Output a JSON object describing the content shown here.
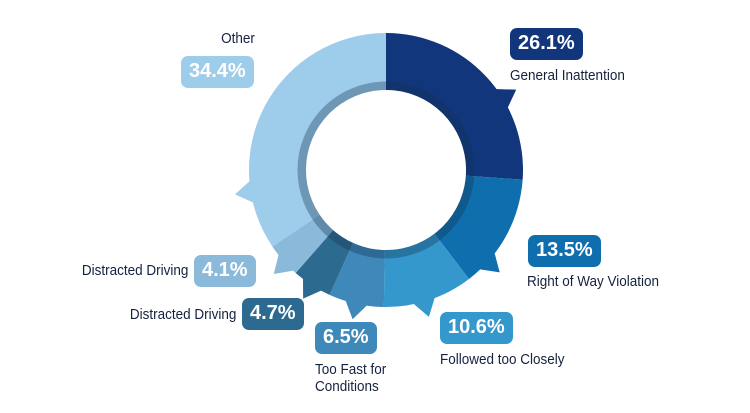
{
  "chart_data": {
    "type": "pie",
    "variant": "donut",
    "title": "",
    "start": "top, clockwise",
    "slices": [
      {
        "label": "General Inattention",
        "value": 26.1,
        "display": "26.1%",
        "color": "#12367c"
      },
      {
        "label": "Right of Way Violation",
        "value": 13.5,
        "display": "13.5%",
        "color": "#0f6fae"
      },
      {
        "label": "Followed too Closely",
        "value": 10.6,
        "display": "10.6%",
        "color": "#3498cd"
      },
      {
        "label": "Too Fast for Conditions",
        "value": 6.5,
        "display": "6.5%",
        "color": "#3e88ba"
      },
      {
        "label": "Distracted Driving",
        "value": 4.7,
        "display": "4.7%",
        "color": "#2c6a90"
      },
      {
        "label": "Distracted Driving",
        "value": 4.1,
        "display": "4.1%",
        "color": "#8ab9da"
      },
      {
        "label": "Other",
        "value": 34.4,
        "display": "34.4%",
        "color": "#9ecdec"
      }
    ],
    "legend": "none (labels placed around ring)"
  }
}
